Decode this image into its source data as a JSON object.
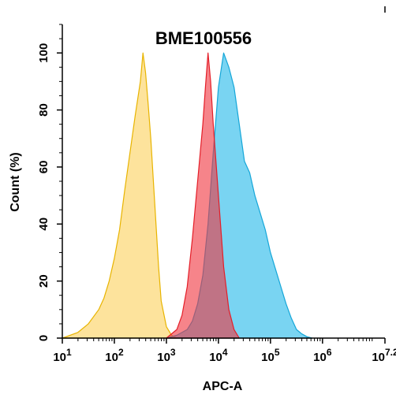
{
  "chart_data": {
    "type": "area",
    "title": "BME100556",
    "xlabel": "APC-A",
    "ylabel": "Count  (%)",
    "x_scale": "log10",
    "xlim": [
      1,
      7.2
    ],
    "ylim": [
      0,
      110
    ],
    "x_tick_labels": [
      {
        "base": "10",
        "exp": "1",
        "value": 1
      },
      {
        "base": "10",
        "exp": "2",
        "value": 2
      },
      {
        "base": "10",
        "exp": "3",
        "value": 3
      },
      {
        "base": "10",
        "exp": "4",
        "value": 4
      },
      {
        "base": "10",
        "exp": "5",
        "value": 5
      },
      {
        "base": "10",
        "exp": "6",
        "value": 6
      },
      {
        "base": "10",
        "exp": "7.2",
        "value": 7.2
      }
    ],
    "y_ticks": [
      0,
      20,
      40,
      60,
      80,
      100
    ],
    "grid": false,
    "series": [
      {
        "color": "#fcd05a",
        "stroke": "#e8b400",
        "x": [
          1.0,
          1.3,
          1.5,
          1.7,
          1.8,
          1.9,
          2.0,
          2.1,
          2.2,
          2.3,
          2.4,
          2.5,
          2.55,
          2.6,
          2.65,
          2.7,
          2.75,
          2.8,
          2.85,
          2.9,
          3.0,
          3.1,
          3.2
        ],
        "y": [
          0,
          2,
          5,
          10,
          14,
          20,
          28,
          38,
          52,
          65,
          78,
          90,
          100,
          93,
          82,
          70,
          55,
          40,
          25,
          13,
          4,
          1,
          0
        ]
      },
      {
        "color": "#20b8ea",
        "stroke": "#15a6d8",
        "x": [
          3.0,
          3.2,
          3.4,
          3.5,
          3.6,
          3.7,
          3.8,
          3.9,
          4.0,
          4.1,
          4.2,
          4.3,
          4.4,
          4.5,
          4.6,
          4.7,
          4.8,
          4.9,
          5.0,
          5.1,
          5.2,
          5.3,
          5.4,
          5.5,
          5.6,
          5.7,
          5.8
        ],
        "y": [
          0,
          1,
          3,
          6,
          12,
          22,
          40,
          65,
          88,
          100,
          95,
          88,
          75,
          62,
          58,
          50,
          44,
          38,
          30,
          24,
          18,
          12,
          7,
          3,
          1.5,
          0.5,
          0
        ]
      },
      {
        "color": "#f0323c",
        "stroke": "#e41e28",
        "x": [
          3.0,
          3.2,
          3.3,
          3.4,
          3.5,
          3.6,
          3.7,
          3.75,
          3.8,
          3.85,
          3.9,
          4.0,
          4.1,
          4.2,
          4.3,
          4.4
        ],
        "y": [
          0,
          3,
          8,
          18,
          35,
          55,
          75,
          88,
          100,
          90,
          75,
          50,
          25,
          10,
          3,
          0
        ]
      }
    ]
  }
}
